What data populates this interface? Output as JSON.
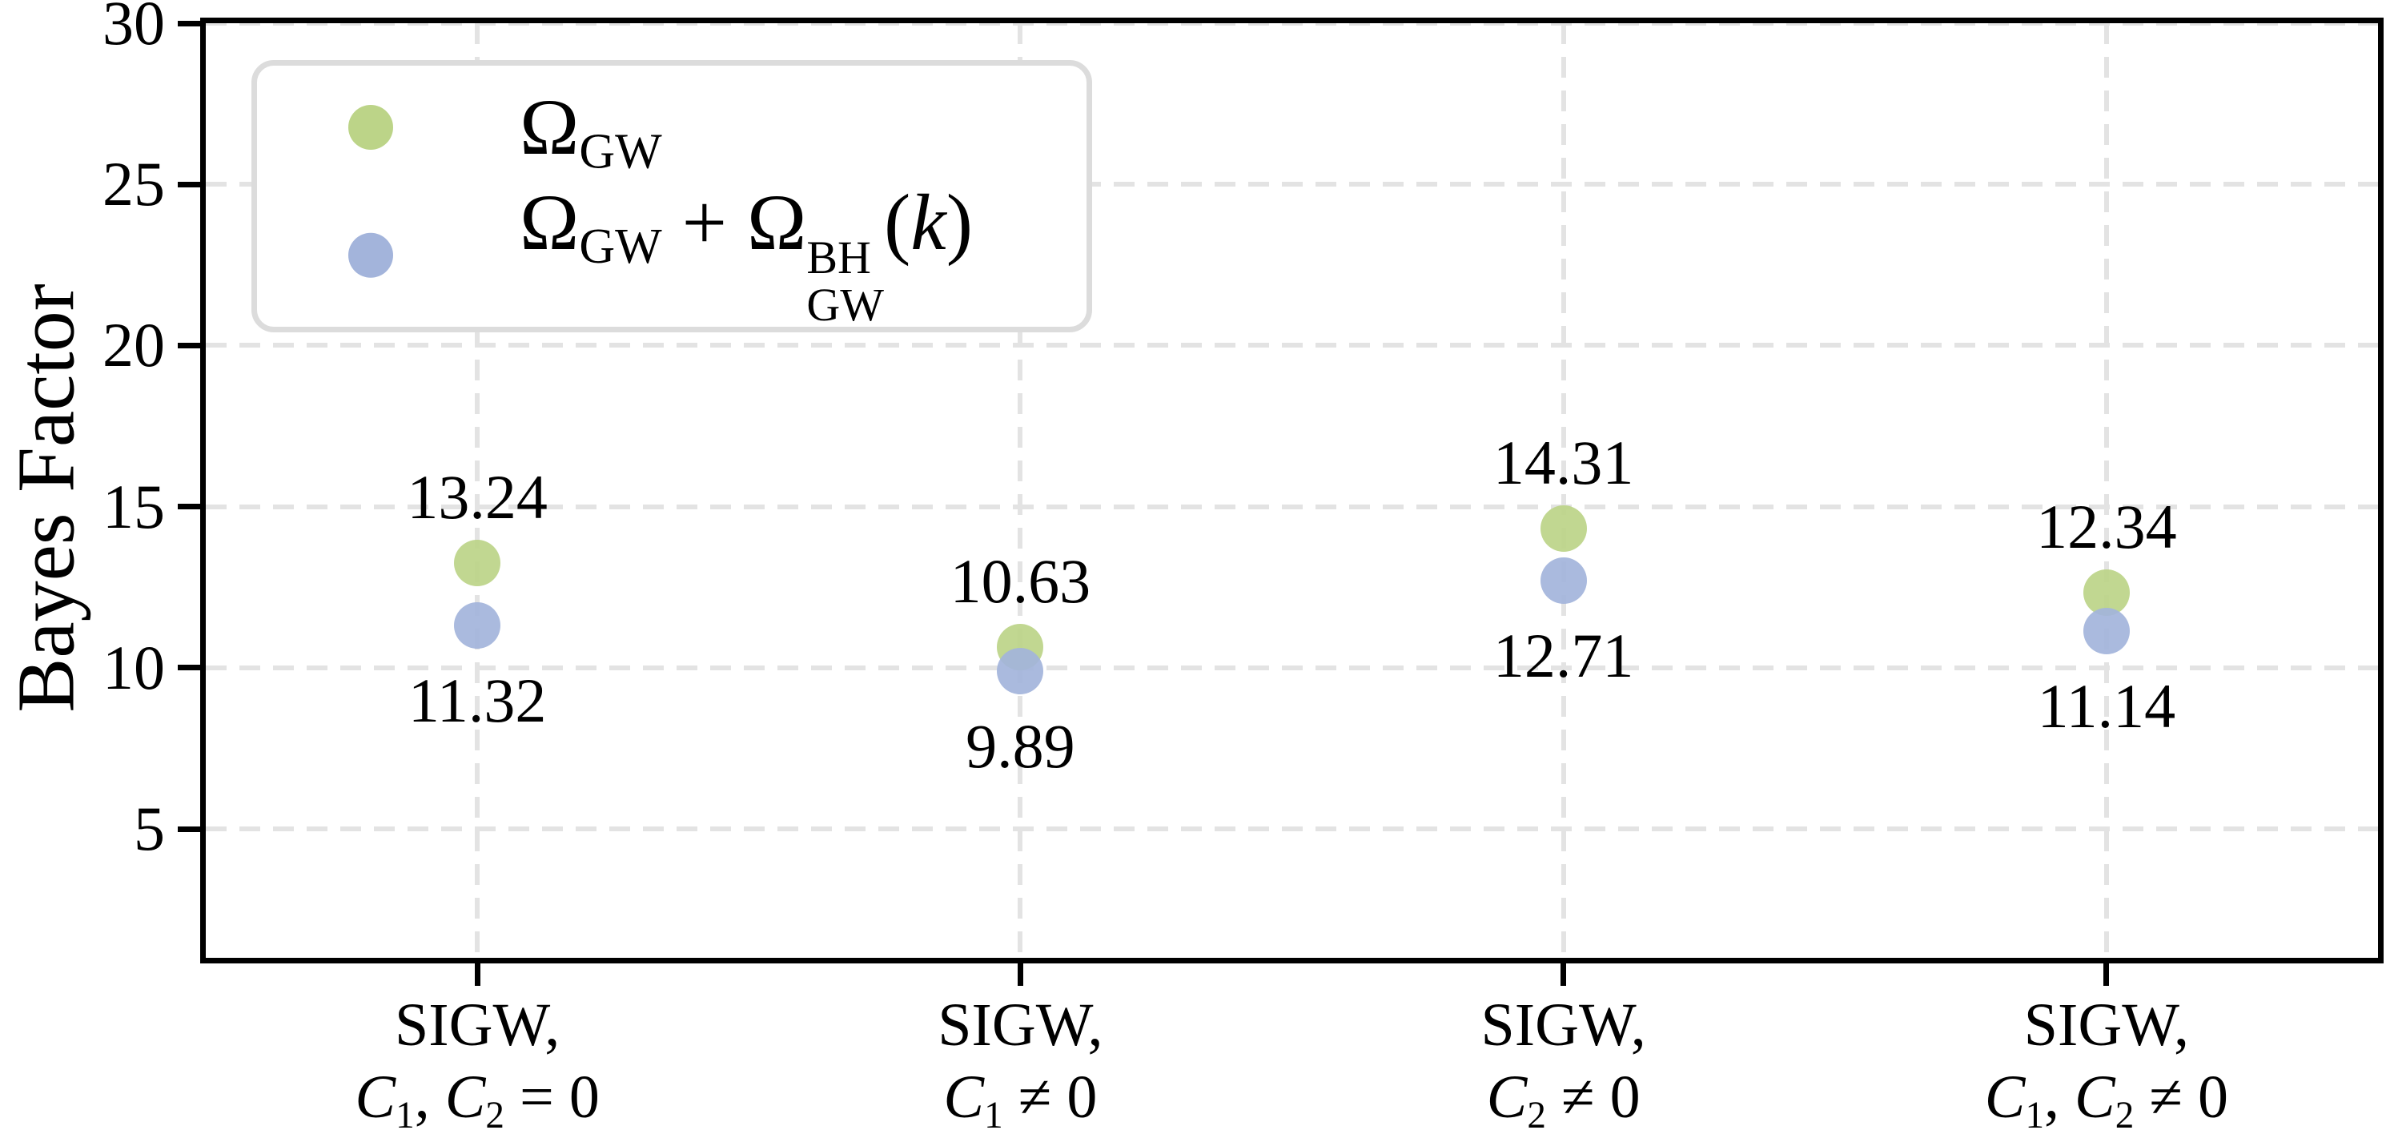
{
  "chart_data": {
    "type": "scatter",
    "title": "",
    "xlabel": "",
    "ylabel": "Bayes Factor",
    "ylim": [
      1.0,
      30
    ],
    "yticks": [
      5,
      10,
      15,
      20,
      25,
      30
    ],
    "grid": {
      "style": "dashed",
      "axes": "both",
      "color": "#e3e3e3"
    },
    "axis_color": "#000000",
    "background_color": "#ffffff",
    "legend": {
      "position": "upper-left",
      "border_color": "#dcdcdc",
      "items": [
        {
          "label": "Ω_{GW}",
          "marker_color": "#bcd488"
        },
        {
          "label": "Ω_{GW} + Ω^{BH}_{GW}($k$)",
          "marker_color": "#a3b4db"
        }
      ]
    },
    "categories": [
      {
        "line1": "SIGW,",
        "line2": "$C$_{1}, $C$_{2} = 0"
      },
      {
        "line1": "SIGW,",
        "line2": "$C$_{1} ≠ 0"
      },
      {
        "line1": "SIGW,",
        "line2": "$C$_{2} ≠ 0"
      },
      {
        "line1": "SIGW,",
        "line2": "$C$_{1}, $C$_{2} ≠ 0"
      }
    ],
    "series": [
      {
        "name": "Ω_{GW}",
        "color": "#bcd488",
        "values": [
          13.24,
          10.63,
          14.31,
          12.34
        ],
        "value_labels": [
          "13.24",
          "10.63",
          "14.31",
          "12.34"
        ],
        "label_placement": "above"
      },
      {
        "name": "Ω_{GW} + Ω^{BH}_{GW}($k$)",
        "color": "#a3b4db",
        "values": [
          11.32,
          9.89,
          12.71,
          11.14
        ],
        "value_labels": [
          "11.32",
          "9.89",
          "12.71",
          "11.14"
        ],
        "label_placement": "below"
      }
    ]
  }
}
